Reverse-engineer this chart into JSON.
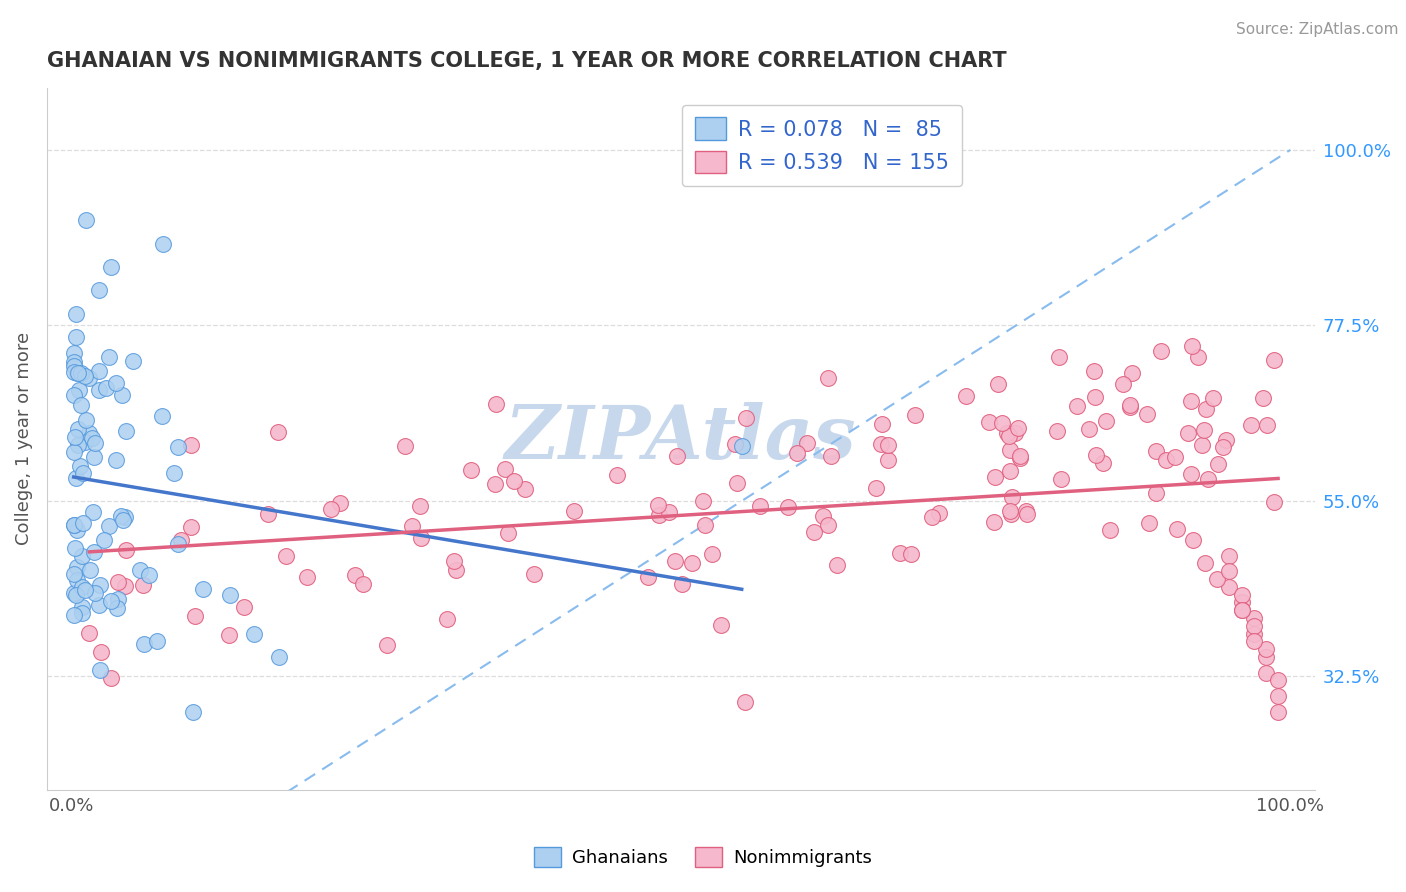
{
  "title": "GHANAIAN VS NONIMMIGRANTS COLLEGE, 1 YEAR OR MORE CORRELATION CHART",
  "source_text": "Source: ZipAtlas.com",
  "ylabel": "College, 1 year or more",
  "xlim": [
    -0.02,
    1.02
  ],
  "ylim": [
    0.18,
    1.08
  ],
  "y_ticks_right": [
    0.325,
    0.55,
    0.775,
    1.0
  ],
  "y_tick_labels_right": [
    "32.5%",
    "55.0%",
    "77.5%",
    "100.0%"
  ],
  "ghanaian_R": 0.078,
  "ghanaian_N": 85,
  "nonimmigrant_R": 0.539,
  "nonimmigrant_N": 155,
  "blue_color": "#add0f0",
  "blue_edge": "#5599dd",
  "pink_color": "#f5b8cc",
  "pink_edge": "#e06080",
  "blue_line_color": "#4477cc",
  "pink_line_color": "#e06080",
  "dash_color": "#88bbee",
  "watermark_color": "#c8d8ec",
  "background": "#ffffff",
  "title_color": "#333333",
  "legend_color": "#3366cc",
  "grid_color": "#dddddd"
}
